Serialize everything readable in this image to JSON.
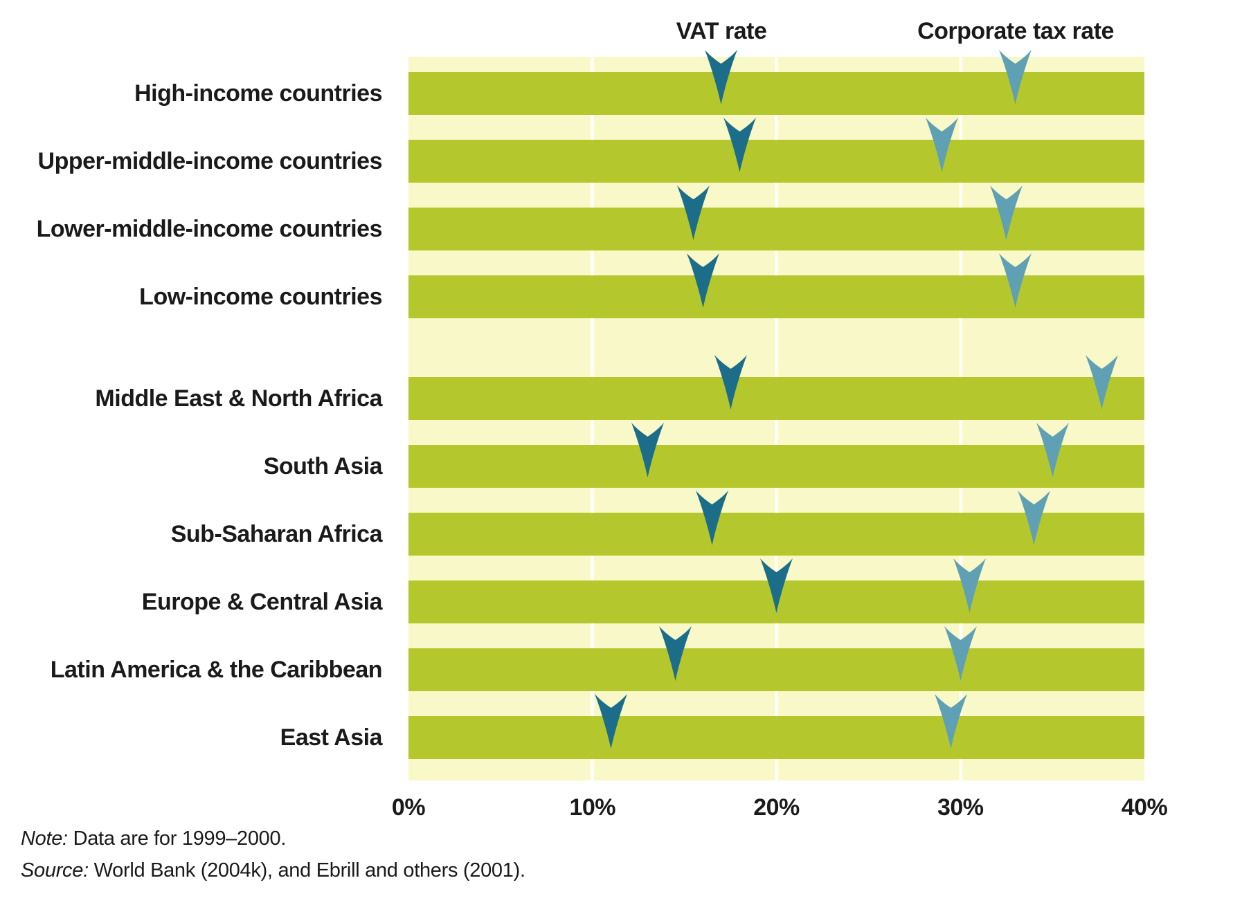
{
  "colors": {
    "bar": "#b4c82d",
    "plot_bg": "#f8f8c8",
    "gridline": "#ffffff",
    "vat": "#1b6d8a",
    "corporate": "#5fa0b4",
    "text": "#1a1a1a",
    "background": "#ffffff"
  },
  "chart_data": {
    "type": "scatter",
    "subtype": "horizontal-dot-plot-with-arrow-markers",
    "title": "",
    "xlabel": "",
    "ylabel": "",
    "x_axis": {
      "min": 0,
      "max": 40,
      "unit": "%",
      "tick_values": [
        0,
        10,
        20,
        30,
        40
      ],
      "tick_labels": [
        "0%",
        "10%",
        "20%",
        "30%",
        "40%"
      ],
      "gridlines_at": [
        10,
        20,
        30
      ],
      "grid": true
    },
    "legend_position": "column-headers-above-plot",
    "series": [
      {
        "name": "VAT rate",
        "color": "#1b6d8a"
      },
      {
        "name": "Corporate tax rate",
        "color": "#5fa0b4"
      }
    ],
    "rows": [
      {
        "label": "High-income countries",
        "vat": 17,
        "corporate": 33
      },
      {
        "label": "Upper-middle-income countries",
        "vat": 18,
        "corporate": 29
      },
      {
        "label": "Lower-middle-income countries",
        "vat": 15.5,
        "corporate": 32.5
      },
      {
        "label": "Low-income countries",
        "vat": 16,
        "corporate": 33
      },
      {
        "label": "Middle East & North Africa",
        "vat": 17.5,
        "corporate": 37.7
      },
      {
        "label": "South Asia",
        "vat": 13,
        "corporate": 35
      },
      {
        "label": "Sub-Saharan Africa",
        "vat": 16.5,
        "corporate": 34
      },
      {
        "label": "Europe & Central Asia",
        "vat": 20,
        "corporate": 30.5
      },
      {
        "label": "Latin America & the Caribbean",
        "vat": 14.5,
        "corporate": 30
      },
      {
        "label": "East Asia",
        "vat": 11,
        "corporate": 29.5
      }
    ],
    "group_gap_after_row": 4,
    "note": {
      "prefix": "Note:",
      "text": " Data are for 1999–2000."
    },
    "source": {
      "prefix": "Source:",
      "text": " World Bank (2004k), and Ebrill and others (2001)."
    }
  }
}
